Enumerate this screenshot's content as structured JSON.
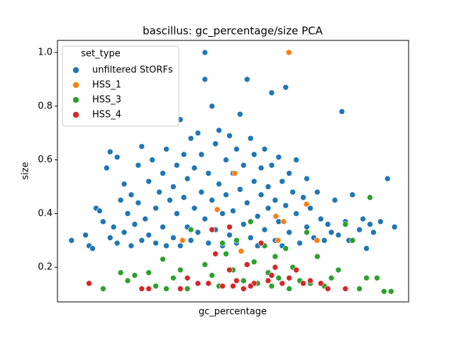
{
  "chart_data": {
    "type": "scatter",
    "title": "bascillus: gc_percentage/size PCA",
    "x_label": "gc_percentage",
    "y_label": "size",
    "xlim": [
      0,
      100
    ],
    "ylim": [
      0.071,
      1.045
    ],
    "yticks": [
      0.2,
      0.4,
      0.6,
      0.8,
      {
        "value": 1,
        "label": "1.0"
      }
    ],
    "legend_title": "set_type",
    "legend_position": "upper left",
    "series": [
      {
        "name": "unfiltered StORFs",
        "color": "#1f77b4",
        "x": [
          4,
          8,
          9,
          10,
          11,
          12,
          13,
          14,
          15,
          15,
          16,
          17,
          17,
          18,
          19,
          19,
          20,
          21,
          21,
          22,
          23,
          23,
          24,
          24,
          25,
          26,
          26,
          27,
          28,
          28,
          29,
          30,
          30,
          31,
          31,
          32,
          33,
          33,
          34,
          34,
          35,
          35,
          36,
          36,
          37,
          37,
          38,
          38,
          39,
          39,
          40,
          40,
          41,
          41,
          42,
          42,
          42,
          43,
          43,
          44,
          44,
          45,
          45,
          46,
          46,
          47,
          47,
          48,
          48,
          49,
          49,
          50,
          50,
          51,
          51,
          52,
          52,
          53,
          53,
          54,
          54,
          55,
          55,
          56,
          56,
          57,
          57,
          58,
          58,
          59,
          59,
          60,
          60,
          61,
          61,
          62,
          62,
          63,
          63,
          64,
          64,
          65,
          65,
          66,
          66,
          67,
          68,
          68,
          69,
          70,
          71,
          71,
          72,
          73,
          74,
          75,
          76,
          77,
          78,
          79,
          80,
          81,
          82,
          83,
          84,
          86,
          87,
          88,
          89,
          90,
          92,
          94,
          96
        ],
        "values": [
          0.3,
          0.32,
          0.28,
          0.27,
          0.42,
          0.41,
          0.37,
          0.57,
          0.31,
          0.63,
          0.35,
          0.29,
          0.61,
          0.45,
          0.51,
          0.33,
          0.4,
          0.47,
          0.28,
          0.36,
          0.58,
          0.44,
          0.3,
          0.65,
          0.38,
          0.52,
          0.32,
          0.6,
          0.42,
          0.29,
          0.48,
          0.55,
          0.35,
          0.64,
          0.28,
          0.45,
          0.5,
          0.31,
          0.58,
          0.4,
          0.75,
          0.28,
          0.62,
          0.46,
          0.35,
          0.53,
          0.68,
          0.3,
          0.42,
          0.57,
          0.7,
          0.33,
          0.48,
          0.62,
          1.0,
          0.9,
          0.38,
          0.55,
          0.29,
          0.8,
          0.45,
          0.66,
          0.34,
          0.51,
          0.71,
          0.4,
          0.28,
          0.6,
          0.47,
          0.69,
          0.32,
          0.55,
          0.41,
          0.64,
          0.29,
          0.77,
          0.49,
          0.36,
          0.58,
          0.9,
          0.44,
          0.68,
          0.31,
          0.52,
          0.62,
          0.39,
          0.28,
          0.57,
          0.47,
          0.64,
          0.34,
          0.5,
          0.42,
          0.85,
          0.58,
          0.3,
          0.45,
          0.61,
          0.37,
          0.52,
          0.28,
          0.87,
          0.43,
          0.55,
          0.33,
          0.48,
          0.4,
          0.6,
          0.29,
          0.46,
          0.53,
          0.35,
          0.42,
          0.31,
          0.48,
          0.38,
          0.3,
          0.36,
          0.33,
          0.45,
          0.32,
          0.78,
          0.37,
          0.3,
          0.47,
          0.34,
          0.38,
          0.27,
          0.36,
          0.33,
          0.37,
          0.53,
          0.35
        ]
      },
      {
        "name": "HSS_1",
        "color": "#ff7f0e",
        "x": [
          65.9,
          50.5,
          45.5,
          62.2,
          64.4,
          70.9,
          35.6,
          84.2,
          73.9,
          52.3,
          62.8
        ],
        "values": [
          1.0,
          0.55,
          0.415,
          0.39,
          0.37,
          0.435,
          0.3,
          0.3,
          0.3,
          0.26,
          0.3
        ]
      },
      {
        "name": "HSS_3",
        "color": "#2ca02c",
        "x": [
          13,
          18,
          20,
          22,
          26,
          28,
          30,
          31,
          33,
          35,
          38,
          40,
          42,
          44,
          46,
          48,
          50,
          51,
          53,
          55,
          56,
          57,
          59,
          60,
          61,
          62,
          63,
          65,
          66,
          67,
          69,
          71,
          72,
          74,
          76,
          78,
          80,
          82,
          84,
          86,
          89,
          91,
          93,
          95,
          88,
          37,
          47
        ],
        "values": [
          0.12,
          0.18,
          0.15,
          0.17,
          0.18,
          0.13,
          0.23,
          0.12,
          0.16,
          0.19,
          0.34,
          0.14,
          0.21,
          0.17,
          0.13,
          0.25,
          0.19,
          0.3,
          0.15,
          0.37,
          0.22,
          0.14,
          0.28,
          0.18,
          0.13,
          0.24,
          0.16,
          0.27,
          0.12,
          0.2,
          0.15,
          0.33,
          0.14,
          0.24,
          0.13,
          0.16,
          0.19,
          0.36,
          0.3,
          0.12,
          0.46,
          0.16,
          0.11,
          0.11,
          0.16,
          0.12,
          0.29
        ]
      },
      {
        "name": "HSS_4",
        "color": "#d62728",
        "x": [
          9,
          24,
          26,
          35,
          37,
          40,
          44,
          45,
          47,
          49,
          49,
          51,
          53,
          54,
          56,
          58,
          60,
          61,
          62,
          64,
          66,
          68,
          70,
          72,
          75,
          77,
          82,
          55,
          50,
          43
        ],
        "values": [
          0.14,
          0.12,
          0.12,
          0.12,
          0.16,
          0.14,
          0.34,
          0.25,
          0.13,
          0.19,
          0.35,
          0.15,
          0.12,
          0.21,
          0.14,
          0.29,
          0.15,
          0.17,
          0.2,
          0.14,
          0.16,
          0.19,
          0.14,
          0.15,
          0.14,
          0.12,
          0.12,
          0.13,
          0.13,
          0.14
        ]
      }
    ]
  }
}
